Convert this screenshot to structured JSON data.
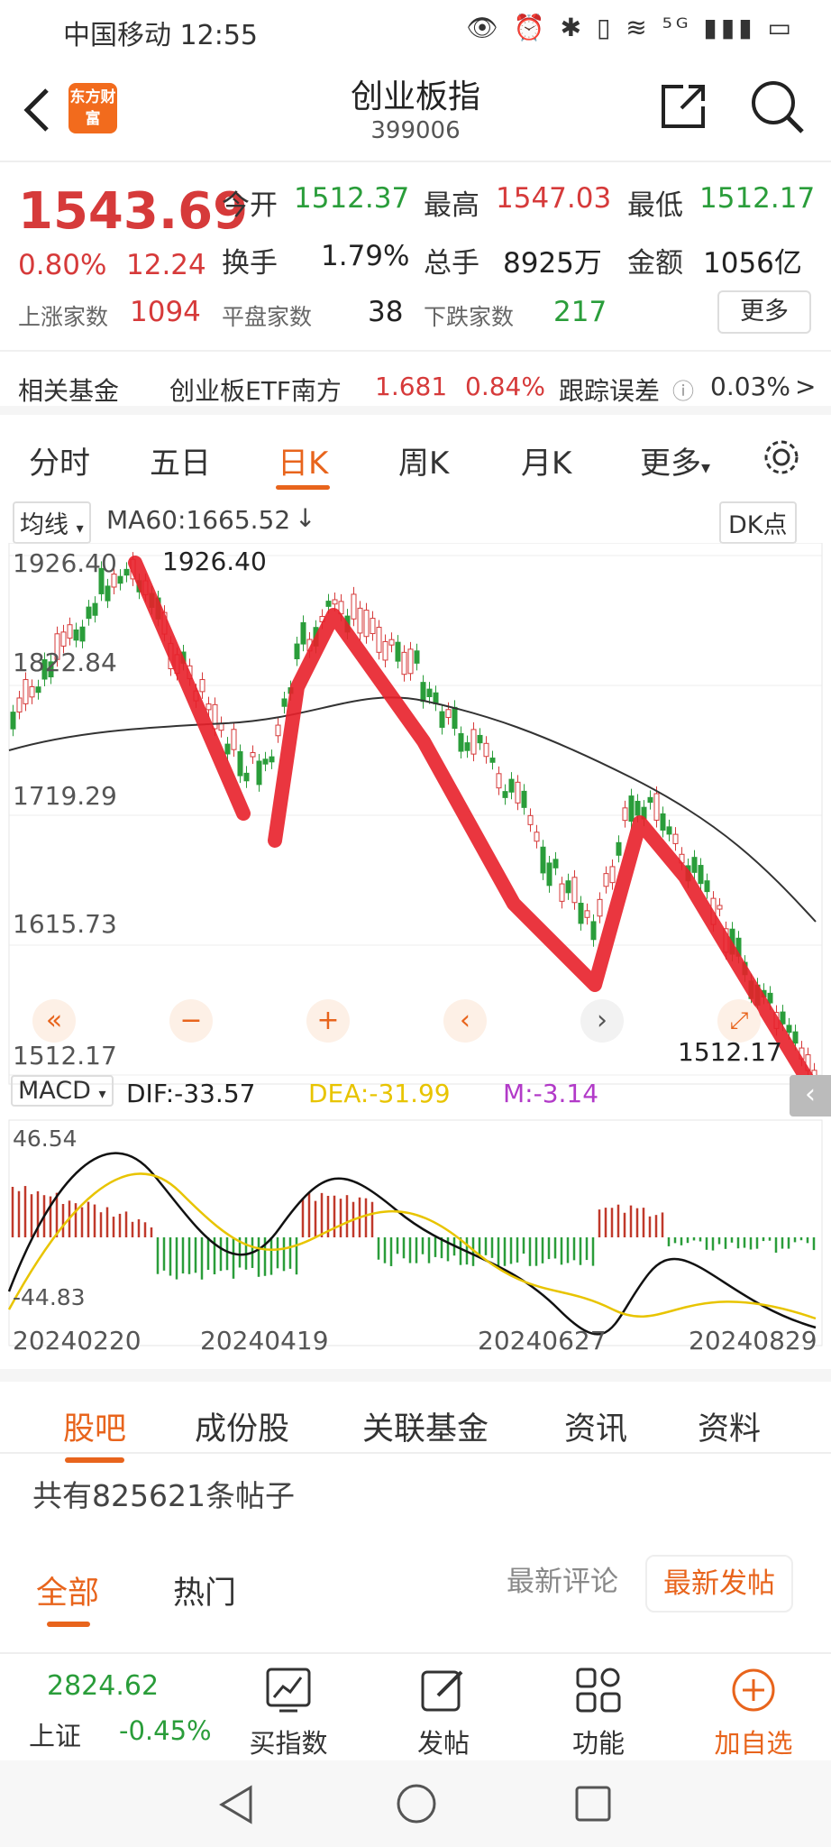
{
  "status": {
    "carrier_time": "中国移动 12:55",
    "icons": "👁 ⏰ ✱ ▯ ≋ ⁵ᴳ ▮▮▮ ▭"
  },
  "header": {
    "logo": "东方财富",
    "title": "创业板指",
    "code": "399006"
  },
  "quote": {
    "price": "1543.69",
    "change_pct": "0.80%",
    "change": "12.24",
    "open_label": "今开",
    "open": "1512.37",
    "high_label": "最高",
    "high": "1547.03",
    "low_label": "最低",
    "low": "1512.17",
    "turnover_label": "换手",
    "turnover": "1.79%",
    "volume_label": "总手",
    "volume": "8925万",
    "amount_label": "金额",
    "amount": "1056亿",
    "up_label": "上涨家数",
    "up": "1094",
    "flat_label": "平盘家数",
    "flat": "38",
    "down_label": "下跌家数",
    "down": "217",
    "more": "更多"
  },
  "fund": {
    "label": "相关基金",
    "name": "创业板ETF南方",
    "price": "1.681",
    "pct": "0.84%",
    "err_label": "跟踪误差",
    "err": "0.03%",
    "arrow": ">"
  },
  "ktabs": [
    "分时",
    "五日",
    "日K",
    "周K",
    "月K",
    "更多"
  ],
  "chart": {
    "ma_select": "均线",
    "ma_label": "MA60:1665.52",
    "dk": "DK点",
    "y_labels": [
      "1926.40",
      "1822.84",
      "1719.29",
      "1615.73",
      "1512.17"
    ],
    "max_label": "1926.40",
    "min_label": "1512.17",
    "macd_select": "MACD",
    "dif": "DIF:-33.57",
    "dea": "DEA:-31.99",
    "m": "M:-3.14",
    "macd_top": "46.54",
    "macd_bottom": "-44.83",
    "dates": [
      "20240220",
      "20240419",
      "20240627",
      "20240829"
    ]
  },
  "chart_data": {
    "type": "candlestick",
    "ylim": [
      1512.17,
      1926.4
    ],
    "x": [
      "20240220",
      "20240419",
      "20240627",
      "20240829"
    ],
    "ma60_last": 1665.52,
    "macd": {
      "dif": -33.57,
      "dea": -31.99,
      "m": -3.14,
      "range": [
        -44.83,
        46.54
      ]
    }
  },
  "bottom_tabs": [
    "股吧",
    "成份股",
    "关联基金",
    "资讯",
    "资料"
  ],
  "posts": "共有825621条帖子",
  "filter": {
    "all": "全部",
    "hot": "热门",
    "latest_comment": "最新评论",
    "latest_post": "最新发帖"
  },
  "navbar": {
    "index_value": "2824.62",
    "index_name": "上证",
    "index_pct": "-0.45%",
    "buy": "买指数",
    "post": "发帖",
    "func": "功能",
    "add": "加自选"
  },
  "colors": {
    "up": "#d63a3a",
    "down": "#2a9d3a",
    "accent": "#e8641c",
    "yellow": "#e8c400",
    "purple": "#b23ac8"
  }
}
